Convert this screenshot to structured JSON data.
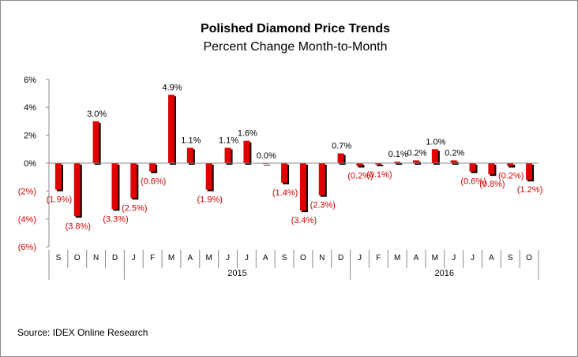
{
  "chart_data": {
    "type": "bar",
    "title": "Polished Diamond Price Trends",
    "subtitle": "Percent Change Month-to-Month",
    "source": "Source: IDEX Online Research",
    "categories": [
      "S",
      "O",
      "N",
      "D",
      "J",
      "F",
      "M",
      "A",
      "M",
      "J",
      "J",
      "A",
      "S",
      "O",
      "N",
      "D",
      "J",
      "F",
      "M",
      "A",
      "M",
      "J",
      "J",
      "A",
      "S",
      "O"
    ],
    "year_labels": [
      {
        "label": "2015",
        "start_index": 4,
        "end_index": 15
      },
      {
        "label": "2016",
        "start_index": 16,
        "end_index": 25
      }
    ],
    "values": [
      -1.9,
      -3.8,
      3.0,
      -3.3,
      -2.5,
      -0.6,
      4.9,
      1.1,
      -1.9,
      1.1,
      1.6,
      0.0,
      -1.4,
      -3.4,
      -2.3,
      0.7,
      -0.2,
      -0.1,
      0.1,
      0.2,
      1.0,
      0.2,
      -0.6,
      -0.8,
      -0.2,
      -1.2
    ],
    "data_labels": [
      "(1.9%)",
      "(3.8%)",
      "3.0%",
      "(3.3%)",
      "(2.5%)",
      "(0.6%)",
      "4.9%",
      "1.1%",
      "(1.9%)",
      "1.1%",
      "1.6%",
      "0.0%",
      "(1.4%)",
      "(3.4%)",
      "(2.3%)",
      "0.7%",
      "(0.2%)",
      "(0.1%)",
      "0.1%",
      "0.2%",
      "1.0%",
      "0.2%",
      "(0.6%)",
      "(0.8%)",
      "(0.2%)",
      "(1.2%)"
    ],
    "yticks": [
      6,
      4,
      2,
      0,
      -2,
      -4,
      -6
    ],
    "ytick_labels": [
      "6%",
      "4%",
      "2%",
      "0%",
      "(2%)",
      "(4%)",
      "(6%)"
    ],
    "ylim": [
      -6,
      6
    ],
    "grid": false,
    "legend": "none",
    "colors": {
      "bar": "#e00000",
      "shadow": "#000000",
      "positive_text": "#000000",
      "negative_text": "#d40000",
      "axis": "#8c8c8c"
    }
  }
}
